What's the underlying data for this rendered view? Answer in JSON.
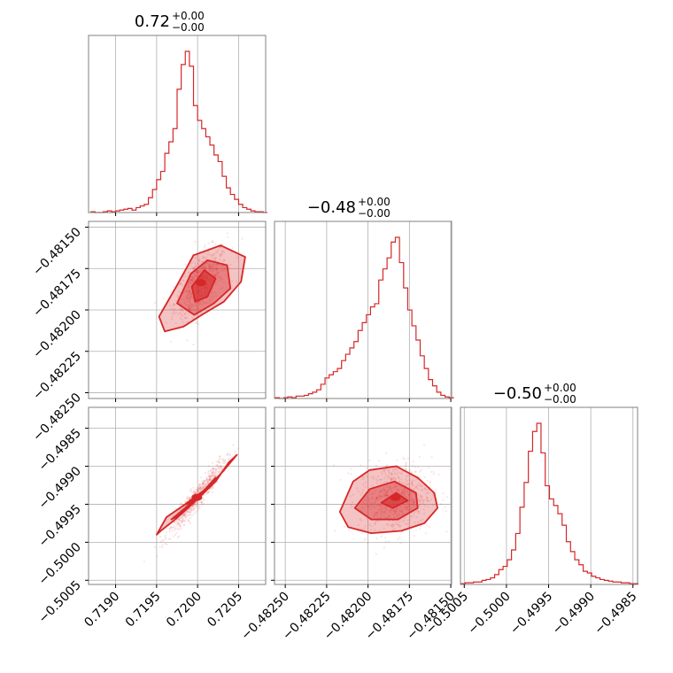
{
  "colors": {
    "accent": "#d62728",
    "grid": "#b0b0b0",
    "spine": "#808080"
  },
  "chart_data": [
    {
      "type": "histogram",
      "title_main": "0.72",
      "title_sup": "+0.00",
      "title_sub": "−0.00",
      "xlim": [
        0.71867,
        0.72083
      ],
      "bin_width": 5e-05,
      "bin_start": 0.7187,
      "counts": [
        1,
        0,
        0,
        1,
        2,
        1,
        2,
        3,
        4,
        5,
        3,
        6,
        8,
        10,
        18,
        28,
        40,
        50,
        72,
        86,
        102,
        150,
        180,
        196,
        178,
        130,
        112,
        102,
        92,
        82,
        70,
        62,
        44,
        30,
        22,
        16,
        10,
        6,
        4,
        2,
        1,
        1,
        0
      ]
    },
    {
      "type": "histogram",
      "title_main": "−0.48",
      "title_sup": "+0.00",
      "title_sub": "−0.00",
      "xlim": [
        -0.482565,
        -0.481495
      ],
      "bin_width": 2.5e-05,
      "bin_start": -0.48256,
      "counts": [
        1,
        0,
        1,
        2,
        1,
        3,
        3,
        4,
        6,
        8,
        11,
        18,
        26,
        30,
        34,
        38,
        48,
        56,
        64,
        72,
        86,
        96,
        106,
        116,
        120,
        150,
        164,
        178,
        198,
        204,
        172,
        140,
        112,
        92,
        74,
        54,
        38,
        24,
        16,
        8,
        4,
        2,
        1
      ]
    },
    {
      "type": "histogram",
      "title_main": "−0.50",
      "title_sup": "+0.00",
      "title_sub": "−0.00",
      "xlim": [
        -0.500545,
        -0.498445
      ],
      "bin_width": 5e-05,
      "bin_start": -0.50054,
      "counts": [
        1,
        2,
        2,
        3,
        3,
        5,
        6,
        8,
        12,
        18,
        22,
        30,
        42,
        62,
        94,
        124,
        162,
        186,
        196,
        160,
        120,
        104,
        96,
        86,
        72,
        52,
        40,
        30,
        24,
        16,
        14,
        10,
        8,
        6,
        5,
        4,
        3,
        3,
        2,
        2,
        1,
        1
      ]
    },
    {
      "type": "scatter",
      "xlabel_param": 1,
      "ylabel_param": 2,
      "mean": [
        0.72004,
        -0.481835
      ],
      "sd": [
        0.00016,
        0.000105
      ],
      "corr": 0.6,
      "levels": [
        {
          "fill_opacity": 0.28,
          "points": [
            [
              0.71953,
              -0.48204
            ],
            [
              0.71975,
              -0.48185
            ],
            [
              0.71995,
              -0.48167
            ],
            [
              0.72028,
              -0.48161
            ],
            [
              0.72058,
              -0.48168
            ],
            [
              0.72053,
              -0.48183
            ],
            [
              0.72032,
              -0.48195
            ],
            [
              0.72005,
              -0.48203
            ],
            [
              0.71983,
              -0.4821
            ],
            [
              0.7196,
              -0.48213
            ]
          ]
        },
        {
          "fill_opacity": 0.42,
          "points": [
            [
              0.71975,
              -0.48196
            ],
            [
              0.71992,
              -0.48178
            ],
            [
              0.72012,
              -0.4817
            ],
            [
              0.72036,
              -0.48173
            ],
            [
              0.7204,
              -0.48187
            ],
            [
              0.7202,
              -0.48196
            ],
            [
              0.71996,
              -0.48203
            ]
          ]
        },
        {
          "fill_opacity": 0.6,
          "points": [
            [
              0.71993,
              -0.48186
            ],
            [
              0.72008,
              -0.48176
            ],
            [
              0.72022,
              -0.48181
            ],
            [
              0.72012,
              -0.48192
            ],
            [
              0.71997,
              -0.48195
            ]
          ]
        }
      ]
    },
    {
      "type": "scatter",
      "xlabel_param": 1,
      "ylabel_param": 3,
      "mean": [
        0.71999,
        -0.49941
      ],
      "sd": [
        0.00017,
        0.00024
      ],
      "corr": 0.95,
      "levels": [
        {
          "fill_opacity": 0.28,
          "points": [
            [
              0.7195,
              -0.4999
            ],
            [
              0.71962,
              -0.49967
            ],
            [
              0.71985,
              -0.4995
            ],
            [
              0.7201,
              -0.4993
            ],
            [
              0.7203,
              -0.49908
            ],
            [
              0.72048,
              -0.49885
            ],
            [
              0.72038,
              -0.49895
            ],
            [
              0.72022,
              -0.4992
            ],
            [
              0.71998,
              -0.49945
            ],
            [
              0.71975,
              -0.49968
            ],
            [
              0.71955,
              -0.49985
            ]
          ]
        },
        {
          "fill_opacity": 0.42,
          "points": [
            [
              0.71968,
              -0.4997
            ],
            [
              0.71985,
              -0.49955
            ],
            [
              0.72005,
              -0.49935
            ],
            [
              0.72022,
              -0.49915
            ],
            [
              0.72012,
              -0.49928
            ],
            [
              0.71995,
              -0.49947
            ],
            [
              0.71977,
              -0.49965
            ]
          ]
        },
        {
          "fill_opacity": 0.6,
          "points": [
            [
              0.71986,
              -0.4995
            ],
            [
              0.72,
              -0.49938
            ],
            [
              0.72008,
              -0.49933
            ],
            [
              0.71995,
              -0.49945
            ]
          ]
        }
      ]
    },
    {
      "type": "scatter",
      "xlabel_param": 2,
      "ylabel_param": 3,
      "mean": [
        -0.481835,
        -0.49941
      ],
      "sd": [
        0.00011,
        0.00024
      ],
      "corr": 0.1,
      "levels": [
        {
          "fill_opacity": 0.28,
          "points": [
            [
              -0.48217,
              -0.4996
            ],
            [
              -0.48209,
              -0.4992
            ],
            [
              -0.48199,
              -0.49905
            ],
            [
              -0.48183,
              -0.499
            ],
            [
              -0.4817,
              -0.49915
            ],
            [
              -0.4816,
              -0.49935
            ],
            [
              -0.48158,
              -0.49955
            ],
            [
              -0.48166,
              -0.49975
            ],
            [
              -0.4818,
              -0.49985
            ],
            [
              -0.48198,
              -0.49988
            ],
            [
              -0.48212,
              -0.4998
            ]
          ]
        },
        {
          "fill_opacity": 0.42,
          "points": [
            [
              -0.48208,
              -0.49955
            ],
            [
              -0.48199,
              -0.4993
            ],
            [
              -0.48184,
              -0.4992
            ],
            [
              -0.48171,
              -0.49935
            ],
            [
              -0.4817,
              -0.49955
            ],
            [
              -0.48182,
              -0.4997
            ],
            [
              -0.48198,
              -0.4997
            ]
          ]
        },
        {
          "fill_opacity": 0.6,
          "points": [
            [
              -0.48192,
              -0.49948
            ],
            [
              -0.48183,
              -0.49935
            ],
            [
              -0.48176,
              -0.49945
            ],
            [
              -0.48185,
              -0.49955
            ]
          ]
        }
      ]
    }
  ],
  "axes": {
    "p1_ticks": [
      "0.7190",
      "0.7195",
      "0.7200",
      "0.7205"
    ],
    "p1_tick_values": [
      0.719,
      0.7195,
      0.72,
      0.7205
    ],
    "p2_ticks": [
      "−0.48250",
      "−0.48225",
      "−0.48200",
      "−0.48175",
      "−0.48150"
    ],
    "p2_tick_values": [
      -0.4825,
      -0.48225,
      -0.482,
      -0.48175,
      -0.4815
    ],
    "p3_ticks": [
      "−0.5005",
      "−0.5000",
      "−0.4995",
      "−0.4990",
      "−0.4985"
    ],
    "p3_tick_values": [
      -0.5005,
      -0.5,
      -0.4995,
      -0.499,
      -0.4985
    ]
  }
}
